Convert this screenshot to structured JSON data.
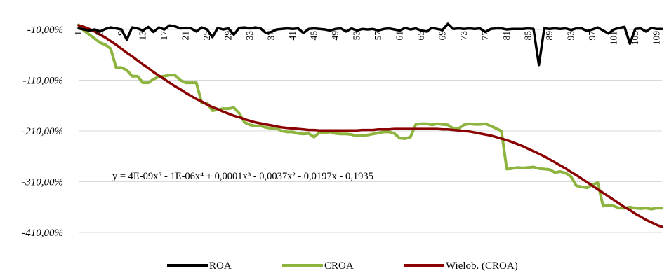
{
  "chart_data": {
    "type": "line",
    "title": "",
    "xlabel": "",
    "ylabel": "",
    "x_ticks": [
      1,
      5,
      9,
      13,
      17,
      21,
      25,
      29,
      33,
      37,
      41,
      45,
      49,
      53,
      57,
      61,
      65,
      69,
      73,
      77,
      81,
      85,
      89,
      93,
      97,
      101,
      105,
      109
    ],
    "y_ticks": [
      -10,
      -110,
      -210,
      -310,
      -410
    ],
    "y_tick_labels": [
      "-10,00%",
      "-110,00%",
      "-210,00%",
      "-310,00%",
      "-410,00%"
    ],
    "ylim": [
      -460,
      -10
    ],
    "xlim": [
      1,
      110
    ],
    "grid": true,
    "legend_position": "bottom",
    "series": [
      {
        "name": "ROA",
        "color": "#000000",
        "x": [
          1,
          2,
          3,
          4,
          5,
          6,
          7,
          8,
          9,
          10,
          11,
          12,
          13,
          14,
          15,
          16,
          17,
          18,
          19,
          20,
          21,
          22,
          23,
          24,
          25,
          26,
          27,
          28,
          29,
          30,
          31,
          32,
          33,
          34,
          35,
          36,
          37,
          38,
          39,
          40,
          41,
          42,
          43,
          44,
          45,
          46,
          47,
          48,
          49,
          50,
          51,
          52,
          53,
          54,
          55,
          56,
          57,
          58,
          59,
          60,
          61,
          62,
          63,
          64,
          65,
          66,
          67,
          68,
          69,
          70,
          71,
          72,
          73,
          74,
          75,
          76,
          77,
          78,
          79,
          80,
          81,
          82,
          83,
          84,
          85,
          86,
          87,
          88,
          89,
          90,
          91,
          92,
          93,
          94,
          95,
          96,
          97,
          98,
          99,
          100,
          101,
          102,
          103,
          104,
          105,
          106,
          107,
          108,
          109,
          110
        ],
        "values": [
          -8,
          -10,
          -12,
          -10,
          -14,
          -9,
          -6,
          -8,
          -10,
          -30,
          -6,
          -8,
          -12,
          -5,
          -15,
          -6,
          -10,
          -2,
          -4,
          -8,
          -7,
          -8,
          -14,
          -6,
          -10,
          -25,
          -7,
          -10,
          -8,
          -20,
          -7,
          -6,
          -8,
          -6,
          -8,
          -17,
          -15,
          -10,
          -9,
          -8,
          -9,
          -8,
          -17,
          -9,
          -8,
          -9,
          -10,
          -12,
          -9,
          -8,
          -14,
          -8,
          -12,
          -9,
          -10,
          -9,
          -12,
          -9,
          -8,
          -10,
          -12,
          -7,
          -10,
          -8,
          -12,
          -14,
          -7,
          -9,
          -11,
          1,
          -9,
          -8,
          -9,
          -8,
          -9,
          -8,
          -15,
          -9,
          -8,
          -8,
          -10,
          -9,
          -9,
          -9,
          -8,
          -9,
          -80,
          -8,
          -9,
          -8,
          -9,
          -8,
          -11,
          -8,
          -8,
          -13,
          -10,
          -6,
          -12,
          -18,
          -10,
          -7,
          -5,
          -38,
          -9,
          -8,
          -14,
          -7,
          -9,
          -9
        ],
        "ylim": null
      },
      {
        "name": "CROA",
        "color": "#8db43f",
        "x": [
          1,
          2,
          3,
          4,
          5,
          6,
          7,
          8,
          9,
          10,
          11,
          12,
          13,
          14,
          15,
          16,
          17,
          18,
          19,
          20,
          21,
          22,
          23,
          24,
          25,
          26,
          27,
          28,
          29,
          30,
          31,
          32,
          33,
          34,
          35,
          36,
          37,
          38,
          39,
          40,
          41,
          42,
          43,
          44,
          45,
          46,
          47,
          48,
          49,
          50,
          51,
          52,
          53,
          54,
          55,
          56,
          57,
          58,
          59,
          60,
          61,
          62,
          63,
          64,
          65,
          66,
          67,
          68,
          69,
          70,
          71,
          72,
          73,
          74,
          75,
          76,
          77,
          78,
          79,
          80,
          81,
          82,
          83,
          84,
          85,
          86,
          87,
          88,
          89,
          90,
          91,
          92,
          93,
          94,
          95,
          96,
          97,
          98,
          99,
          100,
          101,
          102,
          103,
          104,
          105,
          106,
          107,
          108,
          109,
          110
        ],
        "values": [
          -1,
          -12,
          -20,
          -28,
          -36,
          -40,
          -48,
          -85,
          -85,
          -90,
          -102,
          -102,
          -115,
          -115,
          -108,
          -103,
          -102,
          -100,
          -100,
          -110,
          -115,
          -115,
          -115,
          -155,
          -155,
          -170,
          -168,
          -166,
          -166,
          -164,
          -175,
          -193,
          -198,
          -200,
          -200,
          -203,
          -205,
          -205,
          -210,
          -212,
          -212,
          -215,
          -216,
          -215,
          -222,
          -213,
          -214,
          -212,
          -215,
          -216,
          -216,
          -217,
          -220,
          -219,
          -218,
          -216,
          -214,
          -212,
          -212,
          -215,
          -224,
          -225,
          -222,
          -197,
          -196,
          -196,
          -198,
          -196,
          -197,
          -198,
          -205,
          -205,
          -198,
          -196,
          -197,
          -197,
          -196,
          -200,
          -205,
          -210,
          -285,
          -284,
          -282,
          -283,
          -282,
          -281,
          -284,
          -285,
          -286,
          -292,
          -290,
          -293,
          -300,
          -318,
          -320,
          -322,
          -316,
          -312,
          -358,
          -356,
          -358,
          -362,
          -362,
          -360,
          -362,
          -363,
          -362,
          -364,
          -362,
          -362
        ]
      },
      {
        "name": "Wielob. (CROA)",
        "color": "#8b0000",
        "x": [
          1,
          2,
          3,
          4,
          5,
          6,
          7,
          8,
          9,
          10,
          11,
          12,
          13,
          14,
          15,
          16,
          17,
          18,
          19,
          20,
          21,
          22,
          23,
          24,
          25,
          26,
          27,
          28,
          29,
          30,
          31,
          32,
          33,
          34,
          35,
          36,
          37,
          38,
          39,
          40,
          41,
          42,
          43,
          44,
          45,
          46,
          47,
          48,
          49,
          50,
          51,
          52,
          53,
          54,
          55,
          56,
          57,
          58,
          59,
          60,
          61,
          62,
          63,
          64,
          65,
          66,
          67,
          68,
          69,
          70,
          71,
          72,
          73,
          74,
          75,
          76,
          77,
          78,
          79,
          80,
          81,
          82,
          83,
          84,
          85,
          86,
          87,
          88,
          89,
          90,
          91,
          92,
          93,
          94,
          95,
          96,
          97,
          98,
          99,
          100,
          101,
          102,
          103,
          104,
          105,
          106,
          107,
          108,
          109,
          110
        ],
        "values": [
          -2,
          -5,
          -9,
          -14,
          -20,
          -26,
          -33,
          -40,
          -48,
          -56,
          -63,
          -71,
          -79,
          -86,
          -94,
          -101,
          -108,
          -115,
          -122,
          -128,
          -135,
          -141,
          -147,
          -152,
          -158,
          -163,
          -167,
          -172,
          -176,
          -180,
          -183,
          -187,
          -190,
          -193,
          -195,
          -197,
          -199,
          -201,
          -203,
          -204,
          -205,
          -206,
          -207,
          -208,
          -208,
          -209,
          -209,
          -209,
          -209,
          -209,
          -209,
          -209,
          -209,
          -208,
          -208,
          -208,
          -207,
          -207,
          -207,
          -206,
          -206,
          -206,
          -206,
          -206,
          -206,
          -206,
          -206,
          -206,
          -207,
          -207,
          -208,
          -209,
          -210,
          -211,
          -213,
          -215,
          -217,
          -219,
          -222,
          -225,
          -228,
          -232,
          -236,
          -240,
          -245,
          -250,
          -255,
          -260,
          -266,
          -272,
          -278,
          -284,
          -291,
          -297,
          -304,
          -311,
          -318,
          -325,
          -332,
          -339,
          -346,
          -353,
          -360,
          -366,
          -373,
          -379,
          -385,
          -390,
          -395,
          -399
        ]
      }
    ],
    "annotation": "y = 4E-09x⁵ - 1E-06x⁴ + 0,0001x³ - 0,0037x² - 0,0197x - 0,1935"
  },
  "legend": {
    "items": [
      {
        "label": "ROA",
        "color": "#000000"
      },
      {
        "label": "CROA",
        "color": "#8db43f"
      },
      {
        "label": "Wielob. (CROA)",
        "color": "#8b0000"
      }
    ]
  }
}
